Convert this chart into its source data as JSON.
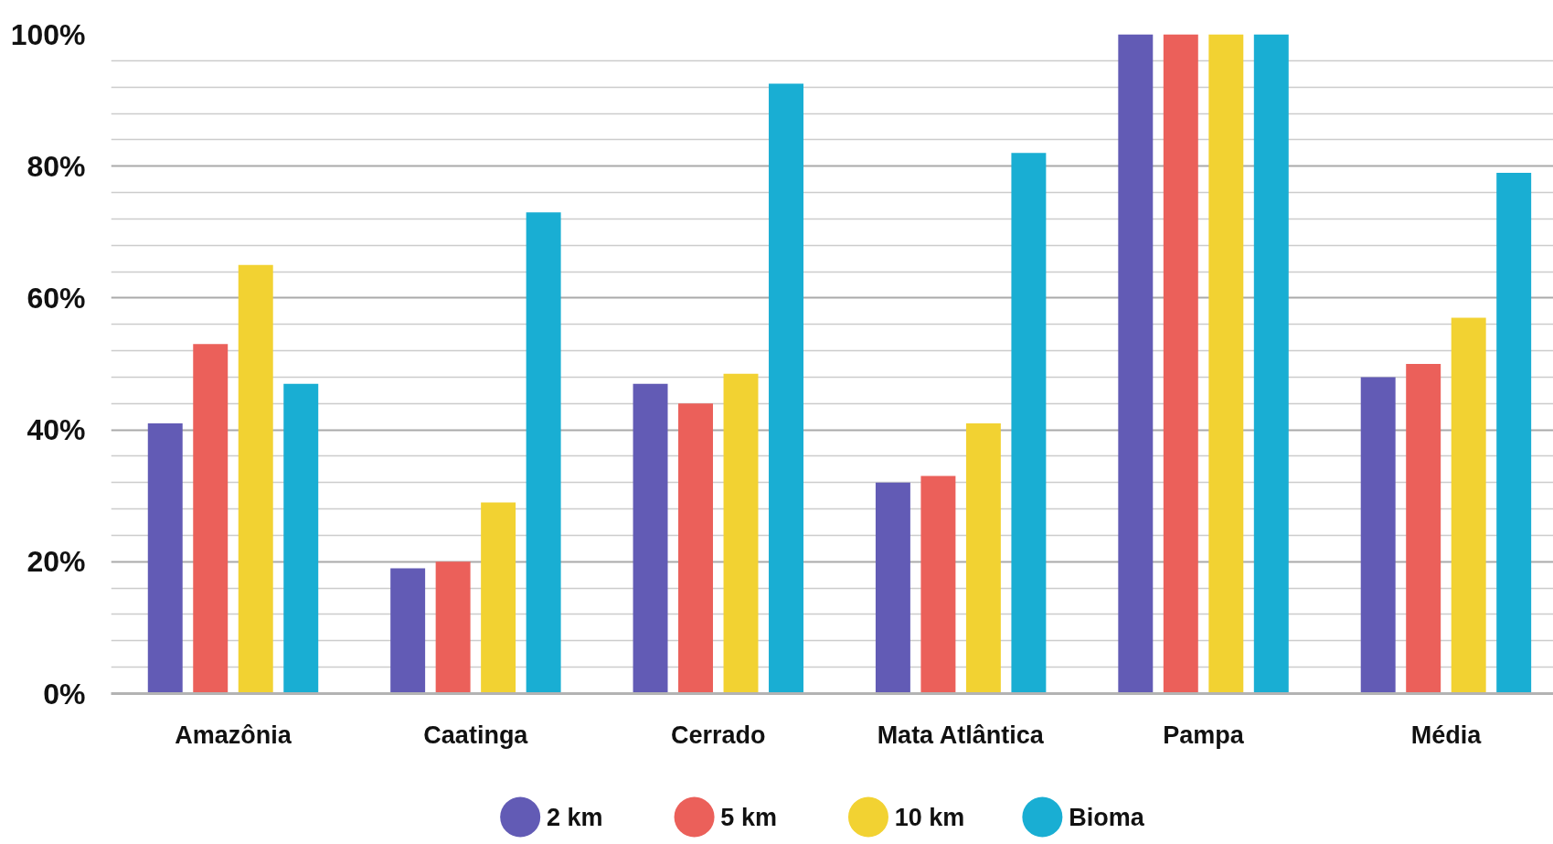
{
  "chart_data": {
    "type": "bar",
    "categories": [
      "Amazônia",
      "Caatinga",
      "Cerrado",
      "Mata Atlântica",
      "Pampa",
      "Média"
    ],
    "series": [
      {
        "name": "2 km",
        "color": "#625bb5",
        "values": [
          41,
          19,
          47,
          32,
          100,
          48
        ]
      },
      {
        "name": "5 km",
        "color": "#eb605a",
        "values": [
          53,
          20,
          44,
          33,
          100,
          50
        ]
      },
      {
        "name": "10 km",
        "color": "#f2d232",
        "values": [
          65,
          29,
          48.5,
          41,
          100,
          57
        ]
      },
      {
        "name": "Bioma",
        "color": "#19aed3",
        "values": [
          47,
          73,
          92.5,
          82,
          100,
          79
        ]
      }
    ],
    "ylim": [
      0,
      100
    ],
    "yticks": [
      {
        "value": 0,
        "label": "0%"
      },
      {
        "value": 4,
        "label": null
      },
      {
        "value": 8,
        "label": null
      },
      {
        "value": 12,
        "label": null
      },
      {
        "value": 16,
        "label": null
      },
      {
        "value": 20,
        "label": "20%"
      },
      {
        "value": 24,
        "label": null
      },
      {
        "value": 28,
        "label": null
      },
      {
        "value": 32,
        "label": null
      },
      {
        "value": 36,
        "label": null
      },
      {
        "value": 40,
        "label": "40%"
      },
      {
        "value": 44,
        "label": null
      },
      {
        "value": 48,
        "label": null
      },
      {
        "value": 52,
        "label": null
      },
      {
        "value": 56,
        "label": null
      },
      {
        "value": 60,
        "label": "60%"
      },
      {
        "value": 64,
        "label": null
      },
      {
        "value": 68,
        "label": null
      },
      {
        "value": 72,
        "label": null
      },
      {
        "value": 76,
        "label": null
      },
      {
        "value": 80,
        "label": "80%"
      },
      {
        "value": 84,
        "label": null
      },
      {
        "value": 88,
        "label": null
      },
      {
        "value": 92,
        "label": null
      },
      {
        "value": 96,
        "label": null
      },
      {
        "value": 100,
        "label": "100%"
      }
    ],
    "grid": "y",
    "legend": "bottom"
  }
}
